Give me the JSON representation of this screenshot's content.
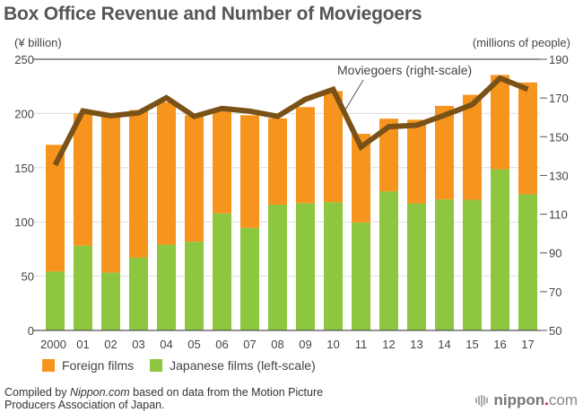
{
  "header": {
    "title": "Box Office Revenue and Number of Moviegoers",
    "left_unit": "(¥ billion)",
    "right_unit": "(millions of people)"
  },
  "legend": {
    "foreign": "Foreign films",
    "japanese": "Japanese films (left-scale)"
  },
  "annotation": "Moviegoers (right-scale)",
  "footer": {
    "source_prefix": "Compiled by ",
    "source_italic": "Nippon.com",
    "source_suffix": " based on data from the Motion Picture",
    "source_line2": "Producers Association of Japan.",
    "logo_main": "nippon",
    "logo_dot": ".",
    "logo_com": "com"
  },
  "colors": {
    "foreign": "#f7941d",
    "japanese": "#8dc63f",
    "moviegoers": "#7a5217",
    "grid": "#dddddd",
    "axis": "#555555"
  },
  "chart_data": {
    "type": "bar",
    "stacked": true,
    "title": "Box Office Revenue and Number of Moviegoers",
    "categories": [
      "2000",
      "01",
      "02",
      "03",
      "04",
      "05",
      "06",
      "07",
      "08",
      "09",
      "10",
      "11",
      "12",
      "13",
      "14",
      "15",
      "16",
      "17"
    ],
    "series": [
      {
        "name": "Japanese films (left-scale)",
        "axis": "left",
        "type": "bar",
        "values": [
          54.3,
          78.1,
          53.3,
          67.1,
          79.0,
          81.8,
          107.9,
          94.6,
          115.9,
          117.3,
          118.2,
          99.5,
          128.2,
          117.1,
          120.7,
          120.4,
          148.6,
          125.5
        ]
      },
      {
        "name": "Foreign films",
        "axis": "left",
        "type": "bar",
        "values": [
          116.8,
          122.0,
          143.9,
          136.1,
          131.4,
          116.4,
          94.9,
          103.8,
          79.6,
          88.6,
          102.5,
          81.7,
          67.0,
          77.1,
          86.3,
          96.8,
          86.9,
          103.1
        ]
      },
      {
        "name": "Moviegoers (right-scale)",
        "axis": "right",
        "type": "line",
        "values": [
          135.4,
          163.3,
          160.8,
          162.3,
          170.1,
          160.5,
          164.6,
          163.2,
          160.5,
          169.3,
          174.4,
          144.7,
          155.2,
          155.9,
          161.1,
          166.6,
          180.2,
          174.5
        ]
      }
    ],
    "ylabel_left": "(¥ billion)",
    "ylabel_right": "(millions of people)",
    "ylim_left": [
      0,
      250
    ],
    "ylim_right": [
      50,
      190
    ],
    "yticks_left": [
      0,
      50,
      100,
      150,
      200,
      250
    ],
    "yticks_right": [
      50,
      70,
      90,
      110,
      130,
      150,
      170,
      190
    ],
    "grid": true,
    "legend_position": "bottom-left"
  }
}
